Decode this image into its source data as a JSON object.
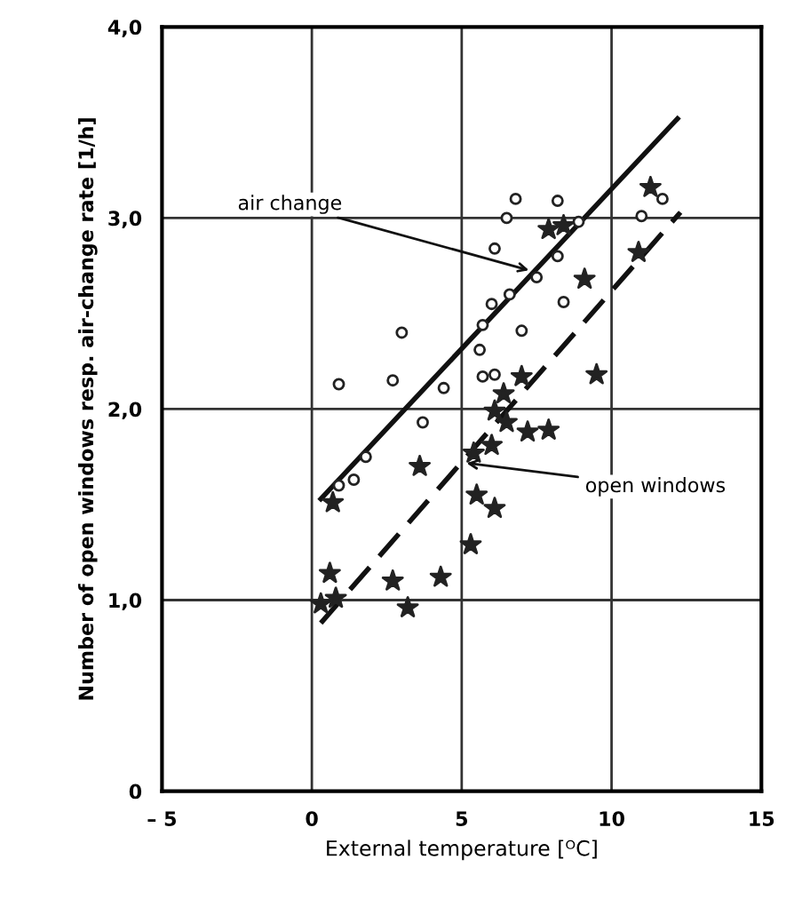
{
  "chart_data": {
    "type": "scatter",
    "xlabel": "External temperature [ᴼC]",
    "ylabel": "Number of open windows resp. air-change rate [1/h]",
    "xlim": [
      -5,
      15
    ],
    "xticks": [
      {
        "value": -5,
        "label": "– 5"
      },
      0,
      5,
      10,
      15
    ],
    "ylim": [
      0,
      4
    ],
    "yticks": [
      {
        "value": 0,
        "label": "0"
      },
      {
        "value": 1,
        "label": "1,0"
      },
      {
        "value": 2,
        "label": "2,0"
      },
      {
        "value": 3,
        "label": "3,0"
      },
      {
        "value": 4,
        "label": "4,0"
      }
    ],
    "grid": true,
    "series": [
      {
        "marker": "circle",
        "color": "#222222",
        "x": [
          6.8,
          8.2,
          6.5,
          8.9,
          6.1,
          8.2,
          7.5,
          6.6,
          6.0,
          8.4,
          5.7,
          3.0,
          7.0,
          5.6,
          0.9,
          2.7,
          4.4,
          5.7,
          6.1,
          3.7,
          1.8,
          1.4,
          0.9,
          11.7,
          11.0
        ],
        "values": [
          3.1,
          3.09,
          3.0,
          2.98,
          2.84,
          2.8,
          2.69,
          2.6,
          2.55,
          2.56,
          2.44,
          2.4,
          2.41,
          2.31,
          2.13,
          2.15,
          2.11,
          2.17,
          2.18,
          1.93,
          1.75,
          1.63,
          1.6,
          3.1,
          3.01
        ]
      },
      {
        "marker": "star",
        "color": "#222222",
        "x": [
          7.9,
          8.4,
          9.1,
          9.5,
          7.0,
          6.4,
          6.1,
          6.5,
          7.2,
          7.9,
          6.0,
          5.4,
          3.6,
          0.7,
          5.5,
          6.1,
          5.3,
          0.6,
          2.7,
          4.3,
          3.2,
          0.3,
          0.8,
          11.3,
          10.9
        ],
        "values": [
          2.94,
          2.96,
          2.68,
          2.18,
          2.17,
          2.08,
          1.99,
          1.93,
          1.88,
          1.89,
          1.81,
          1.77,
          1.7,
          1.51,
          1.55,
          1.48,
          1.29,
          1.14,
          1.1,
          1.12,
          0.96,
          0.98,
          1.01,
          3.16,
          2.82
        ]
      },
      {
        "type": "line",
        "line_style": "solid",
        "marker": "none",
        "color": "#111111",
        "x": [
          0.3,
          12.2
        ],
        "values": [
          1.53,
          3.52
        ]
      },
      {
        "type": "line",
        "line_style": "dashed",
        "marker": "none",
        "color": "#111111",
        "x": [
          0.3,
          12.3
        ],
        "values": [
          0.88,
          3.03
        ]
      }
    ],
    "annotations": [
      {
        "text": "air change",
        "x": 7.4,
        "y": 2.72
      },
      {
        "text": "open windows",
        "x": 5.0,
        "y": 1.72
      }
    ]
  }
}
